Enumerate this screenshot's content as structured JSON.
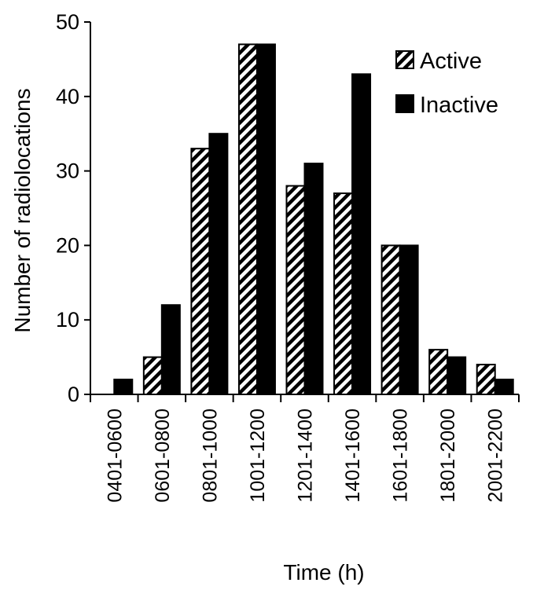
{
  "chart_data": {
    "type": "bar",
    "title": "",
    "xlabel": "Time (h)",
    "ylabel": "Number of radiolocations",
    "ylim": [
      0,
      50
    ],
    "yticks": [
      0,
      10,
      20,
      30,
      40,
      50
    ],
    "categories": [
      "0401-0600",
      "0601-0800",
      "0801-1000",
      "1001-1200",
      "1201-1400",
      "1401-1600",
      "1601-1800",
      "1801-2000",
      "2001-2200"
    ],
    "series": [
      {
        "name": "Active",
        "pattern": "diagonal-hatch",
        "values": [
          0,
          5,
          33,
          47,
          28,
          27,
          20,
          6,
          4
        ]
      },
      {
        "name": "Inactive",
        "pattern": "solid",
        "color": "#000000",
        "values": [
          2,
          12,
          35,
          47,
          31,
          43,
          20,
          5,
          2
        ]
      }
    ],
    "legend_position": "top-right",
    "grid": false
  }
}
